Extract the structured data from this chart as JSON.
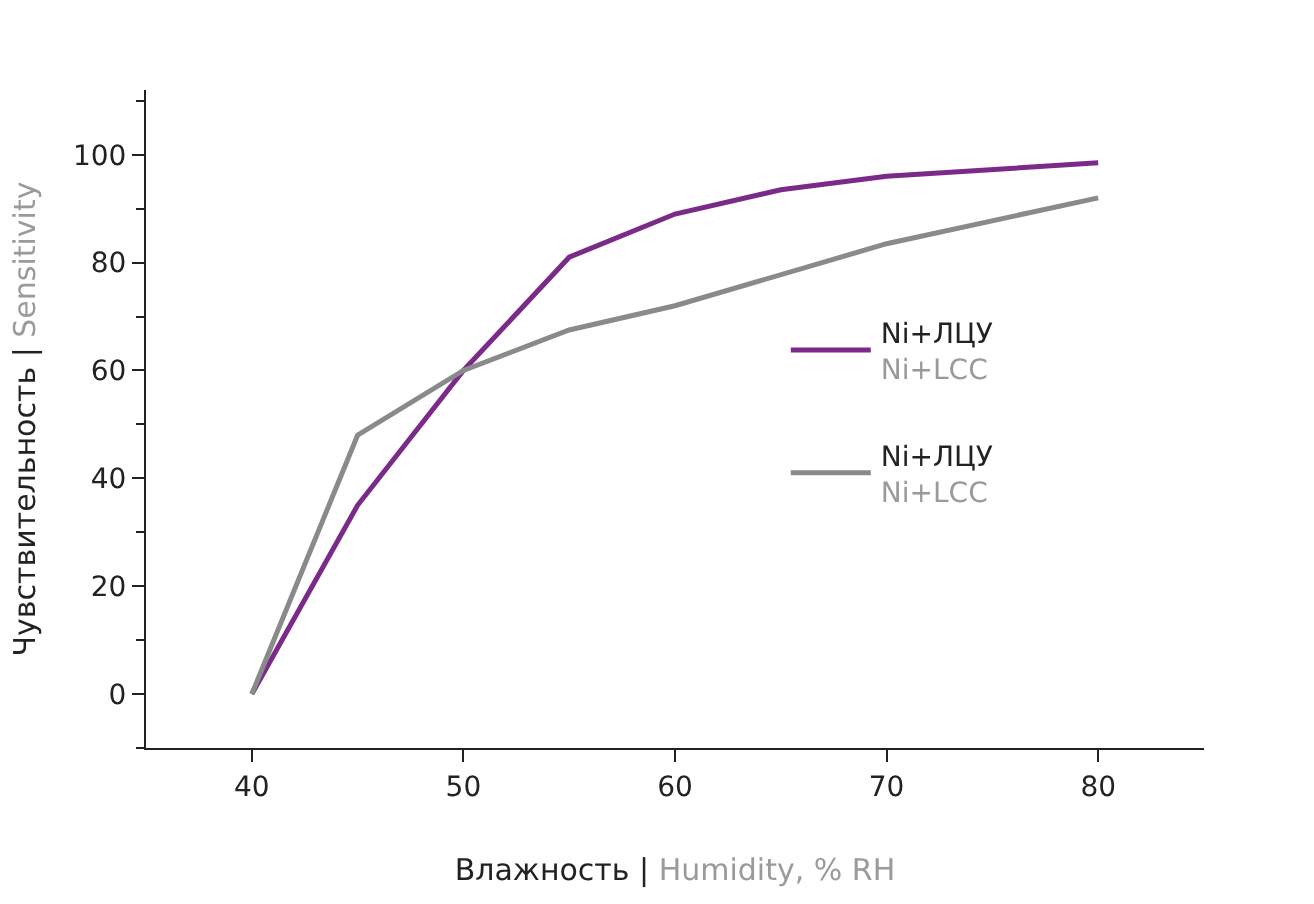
{
  "chart_data": {
    "type": "line",
    "xlabel": "Влажность | Humidity, % RH",
    "ylabel": "Чувствительность | Sensitivity",
    "series": [
      {
        "name": "Ni+ЛЦУ\nNi+LCC",
        "color": "#7b2a8a",
        "x": [
          40,
          45,
          50,
          55,
          60,
          65,
          70,
          80
        ],
        "values": [
          0,
          35,
          60,
          81,
          89,
          93.5,
          96,
          98.5
        ]
      },
      {
        "name": "Ni+ЛЦУ\nNi+LCC",
        "color": "#8a8a8a",
        "x": [
          40,
          45,
          50,
          55,
          60,
          70,
          80
        ],
        "values": [
          0,
          48,
          60,
          67.5,
          72,
          83.5,
          92
        ]
      }
    ],
    "xlim": [
      35,
      85
    ],
    "xticks": [
      40,
      50,
      60,
      70,
      80
    ],
    "ylim": [
      -10,
      112
    ],
    "yticks": [
      0,
      20,
      40,
      60,
      80,
      100
    ],
    "legend": "right",
    "marker": "none",
    "line_style": "solid"
  }
}
